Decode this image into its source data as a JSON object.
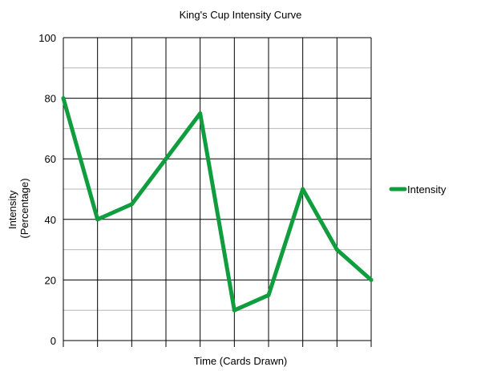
{
  "chart_data": {
    "type": "line",
    "title": "King's Cup Intensity Curve",
    "xlabel": "Time (Cards Drawn)",
    "ylabel_lines": [
      "Intensity",
      "(Percentage)"
    ],
    "ylim": [
      0,
      100
    ],
    "y_ticks": [
      "0",
      "20",
      "40",
      "60",
      "80",
      "100"
    ],
    "x_points": 10,
    "grid": true,
    "legend_position": "right",
    "series": [
      {
        "name": "Intensity",
        "color": "#0f9d3e",
        "values": [
          80,
          40,
          45,
          60,
          75,
          10,
          15,
          50,
          30,
          20
        ]
      }
    ]
  }
}
